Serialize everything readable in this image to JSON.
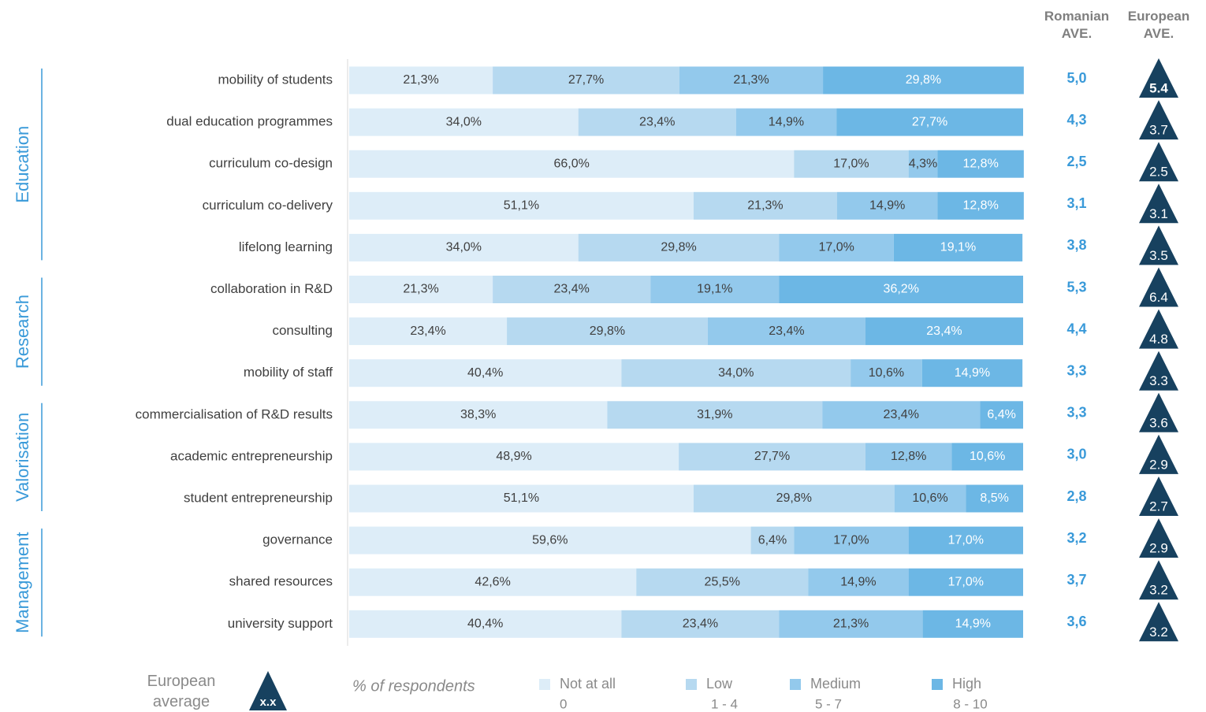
{
  "chart_data": {
    "type": "bar",
    "orientation": "horizontal",
    "stacked": true,
    "categories": [
      "mobility of students",
      "dual education programmes",
      "curriculum co-design",
      "curriculum co-delivery",
      "lifelong learning",
      "collaboration in R&D",
      "consulting",
      "mobility of staff",
      "commercialisation of R&D results",
      "academic entrepreneurship",
      "student entrepreneurship",
      "governance",
      "shared resources",
      "university support"
    ],
    "groups": [
      {
        "name": "Education",
        "size": 5
      },
      {
        "name": "Research",
        "size": 3
      },
      {
        "name": "Valorisation",
        "size": 3
      },
      {
        "name": "Management",
        "size": 3
      }
    ],
    "xlim": [
      0,
      100
    ],
    "xlabel": "% of respondents",
    "series": [
      {
        "name": "Not at all",
        "range": "0",
        "color": "#ddedf8",
        "label_color": "#404040",
        "values": [
          21.3,
          34.0,
          66.0,
          51.1,
          34.0,
          21.3,
          23.4,
          40.4,
          38.3,
          48.9,
          51.1,
          59.6,
          42.6,
          40.4
        ],
        "value_labels": [
          "21,3%",
          "34,0%",
          "66,0%",
          "51,1%",
          "34,0%",
          "21,3%",
          "23,4%",
          "40,4%",
          "38,3%",
          "48,9%",
          "51,1%",
          "59,6%",
          "42,6%",
          "40,4%"
        ]
      },
      {
        "name": "Low",
        "range": "1 - 4",
        "color": "#b6d9f0",
        "label_color": "#404040",
        "values": [
          27.7,
          23.4,
          17.0,
          21.3,
          29.8,
          23.4,
          29.8,
          34.0,
          31.9,
          27.7,
          29.8,
          6.4,
          25.5,
          23.4
        ],
        "value_labels": [
          "27,7%",
          "23,4%",
          "17,0%",
          "21,3%",
          "29,8%",
          "23,4%",
          "29,8%",
          "34,0%",
          "31,9%",
          "27,7%",
          "29,8%",
          "6,4%",
          "25,5%",
          "23,4%"
        ]
      },
      {
        "name": "Medium",
        "range": "5 - 7",
        "color": "#93c9ec",
        "label_color": "#404040",
        "values": [
          21.3,
          14.9,
          4.3,
          14.9,
          17.0,
          19.1,
          23.4,
          10.6,
          23.4,
          12.8,
          10.6,
          17.0,
          14.9,
          21.3
        ],
        "value_labels": [
          "21,3%",
          "14,9%",
          "4,3%",
          "14,9%",
          "17,0%",
          "19,1%",
          "23,4%",
          "10,6%",
          "23,4%",
          "12,8%",
          "10,6%",
          "17,0%",
          "14,9%",
          "21,3%"
        ]
      },
      {
        "name": "High",
        "range": "8 - 10",
        "color": "#6cb7e5",
        "label_color": "#ffffff",
        "values": [
          29.8,
          27.7,
          12.8,
          12.8,
          19.1,
          36.2,
          23.4,
          14.9,
          6.4,
          10.6,
          8.5,
          17.0,
          17.0,
          14.9
        ],
        "value_labels": [
          "29,8%",
          "27,7%",
          "12,8%",
          "12,8%",
          "19,1%",
          "36,2%",
          "23,4%",
          "14,9%",
          "6,4%",
          "10,6%",
          "8,5%",
          "17,0%",
          "17,0%",
          "14,9%"
        ]
      }
    ],
    "romanian_average": {
      "title": "Romanian AVE.",
      "color": "#3a9ad9",
      "values": [
        5.0,
        4.3,
        2.5,
        3.1,
        3.8,
        5.3,
        4.4,
        3.3,
        3.3,
        3.0,
        2.8,
        3.2,
        3.7,
        3.6
      ],
      "value_labels": [
        "5,0",
        "4,3",
        "2,5",
        "3,1",
        "3,8",
        "5,3",
        "4,4",
        "3,3",
        "3,3",
        "3,0",
        "2,8",
        "3,2",
        "3,7",
        "3,6"
      ]
    },
    "european_average": {
      "title": "European AVE.",
      "color": "#17415f",
      "values": [
        5.4,
        3.7,
        2.5,
        3.1,
        3.5,
        6.4,
        4.8,
        3.3,
        3.6,
        2.9,
        2.7,
        2.9,
        3.2,
        3.2
      ]
    },
    "legend_note": {
      "label": "European average",
      "symbol": "x.x"
    }
  }
}
